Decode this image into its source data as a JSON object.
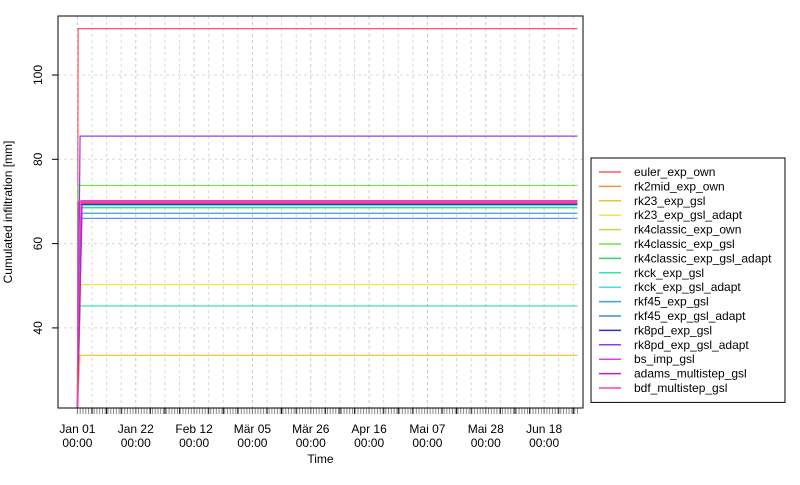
{
  "chart_data": {
    "type": "line",
    "title": "",
    "xlabel": "Time",
    "ylabel": "Cumulated infiltration [mm]",
    "x_ticks": [
      {
        "label": "Jan 01",
        "sub": "00:00",
        "day": 0
      },
      {
        "label": "Jan 22",
        "sub": "00:00",
        "day": 21
      },
      {
        "label": "Feb 12",
        "sub": "00:00",
        "day": 42
      },
      {
        "label": "Mär 05",
        "sub": "00:00",
        "day": 63
      },
      {
        "label": "Mär 26",
        "sub": "00:00",
        "day": 84
      },
      {
        "label": "Apr 16",
        "sub": "00:00",
        "day": 105
      },
      {
        "label": "Mai 07",
        "sub": "00:00",
        "day": 126
      },
      {
        "label": "Mai 28",
        "sub": "00:00",
        "day": 147
      },
      {
        "label": "Jun 18",
        "sub": "00:00",
        "day": 168
      }
    ],
    "x_minor_ticks_per_major": 3,
    "xlim": [
      -7,
      182
    ],
    "x_end_day": 180,
    "ylim": [
      21,
      114
    ],
    "y_ticks": [
      40,
      60,
      80,
      100
    ],
    "grid": true,
    "legend_position": "right",
    "series": [
      {
        "name": "euler_exp_own",
        "color": "#ff5a5a",
        "final": 111.0
      },
      {
        "name": "rk2mid_exp_own",
        "color": "#ff8a3a",
        "final": 69.8
      },
      {
        "name": "rk23_exp_gsl",
        "color": "#f0c030",
        "final": 33.5
      },
      {
        "name": "rk23_exp_gsl_adapt",
        "color": "#e8e84a",
        "final": 50.3
      },
      {
        "name": "rk4classic_exp_own",
        "color": "#b0e040",
        "final": 69.5
      },
      {
        "name": "rk4classic_exp_gsl",
        "color": "#70e048",
        "final": 73.8
      },
      {
        "name": "rk4classic_exp_gsl_adapt",
        "color": "#30d070",
        "final": 68.5
      },
      {
        "name": "rkck_exp_gsl",
        "color": "#40e0b0",
        "final": 45.2
      },
      {
        "name": "rkck_exp_gsl_adapt",
        "color": "#40e0e8",
        "final": 69.0
      },
      {
        "name": "rkf45_exp_gsl",
        "color": "#30a8c8",
        "final": 67.2
      },
      {
        "name": "rkf45_exp_gsl_adapt",
        "color": "#4a88e0",
        "final": 66.0
      },
      {
        "name": "rk8pd_exp_gsl",
        "color": "#3030c8",
        "final": 69.3
      },
      {
        "name": "rk8pd_exp_gsl_adapt",
        "color": "#8a40e8",
        "final": 85.5
      },
      {
        "name": "bs_imp_gsl",
        "color": "#e040e8",
        "final": 70.2
      },
      {
        "name": "adams_multistep_gsl",
        "color": "#c020b0",
        "final": 69.6
      },
      {
        "name": "bdf_multistep_gsl",
        "color": "#ff40a0",
        "final": 70.0
      }
    ]
  }
}
